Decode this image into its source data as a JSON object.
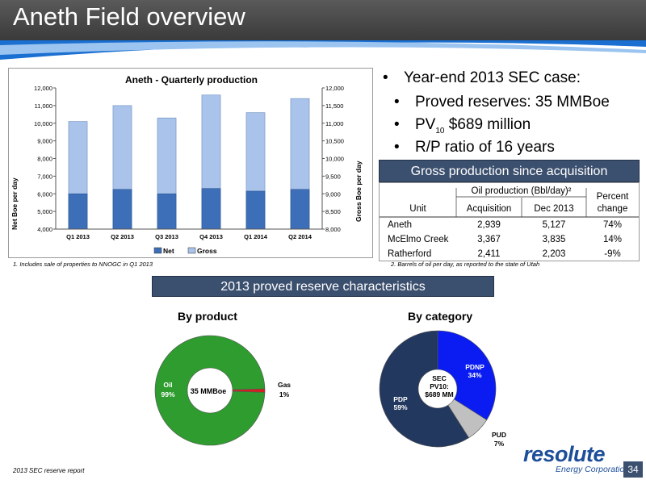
{
  "slide": {
    "title": "Aneth Field overview",
    "page_number": "34",
    "source": "2013 SEC reserve report"
  },
  "bullets": {
    "main": "Year-end 2013 SEC case:",
    "sub1": "Proved reserves: 35 MMBoe",
    "sub2_pv": "PV",
    "sub2_sub": "10",
    "sub2_rest": " $689 million",
    "sub3": "R/P ratio of 16 years"
  },
  "footnotes": {
    "f1": "1.  Includes sale of properties to NNOGC in Q1 2013",
    "f2": "2.  Barrels of oil per day, as reported to the state of Utah"
  },
  "gross_table": {
    "title": "Gross production since acquisition",
    "group_header": "Oil production (Bbl/day)²",
    "col_unit": "Unit",
    "col_acq": "Acquisition",
    "col_dec": "Dec 2013",
    "col_pct_1": "Percent",
    "col_pct_2": "change",
    "rows": [
      {
        "unit": "Aneth",
        "acq": "2,939",
        "dec": "5,127",
        "pct": "74%"
      },
      {
        "unit": "McElmo Creek",
        "acq": "3,367",
        "dec": "3,835",
        "pct": "14%"
      },
      {
        "unit": "Ratherford",
        "acq": "2,411",
        "dec": "2,203",
        "pct": "-9%"
      }
    ]
  },
  "reserve_section": {
    "title": "2013 proved reserve characteristics"
  },
  "logo": {
    "main": "resolute",
    "sub": "Energy Corporation"
  },
  "colors": {
    "net": "#3d6fb8",
    "gross": "#a9c3ea",
    "oil": "#2e9c2e",
    "gas": "#d62020",
    "pdnp": "#0a1cf2",
    "pdp": "#23385f",
    "pud": "#c0c0c0",
    "header": "#3b4f6e"
  },
  "chart_data": [
    {
      "type": "bar",
      "title": "Aneth - Quarterly production",
      "categories": [
        "Q1 2013",
        "Q2 2013",
        "Q3 2013",
        "Q4 2013",
        "Q1 2014",
        "Q2 2014"
      ],
      "series": [
        {
          "name": "Net",
          "axis": "left",
          "values": [
            6000,
            6250,
            6000,
            6300,
            6150,
            6250
          ]
        },
        {
          "name": "Gross",
          "axis": "right",
          "values": [
            11050,
            11500,
            11150,
            11800,
            11300,
            11700
          ]
        }
      ],
      "ylabel": "Net Boe per day",
      "y2label": "Gross Boe per day",
      "ylim": [
        4000,
        12000
      ],
      "y2lim": [
        8000,
        12000
      ],
      "yticks": [
        "4,000",
        "5,000",
        "6,000",
        "7,000",
        "8,000",
        "9,000",
        "10,000",
        "11,000",
        "12,000"
      ],
      "y2ticks": [
        "8,000",
        "8,500",
        "9,000",
        "9,500",
        "10,000",
        "10,500",
        "11,000",
        "11,500",
        "12,000"
      ],
      "legend": "bottom-center",
      "grid": false
    },
    {
      "type": "pie",
      "title": "By product",
      "center_label": "35 MMBoe",
      "slices": [
        {
          "label": "Oil",
          "pct_label": "99%",
          "value": 99
        },
        {
          "label": "Gas",
          "pct_label": "1%",
          "value": 1
        }
      ]
    },
    {
      "type": "pie",
      "title": "By category",
      "center_label": [
        "SEC",
        "PV10:",
        "$689 MM"
      ],
      "slices": [
        {
          "label": "PDNP",
          "pct_label": "34%",
          "value": 34
        },
        {
          "label": "PUD",
          "pct_label": "7%",
          "value": 7
        },
        {
          "label": "PDP",
          "pct_label": "59%",
          "value": 59
        }
      ]
    }
  ]
}
